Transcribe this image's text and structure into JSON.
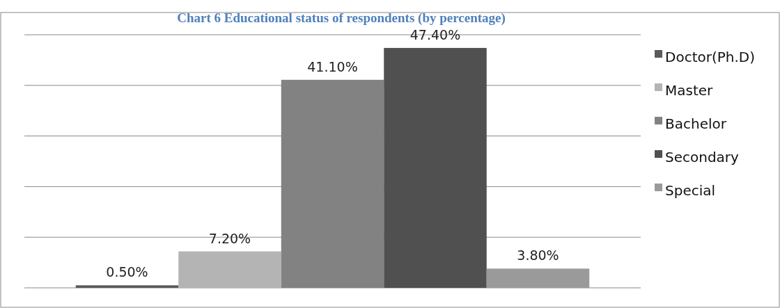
{
  "chart_data": {
    "type": "bar",
    "title": "Chart 6 Educational status of respondents (by percentage)",
    "categories": [
      null
    ],
    "series": [
      {
        "name": "Doctor(Ph.D)",
        "color": "#5a5a5a",
        "values": [
          0.5
        ],
        "value_labels": [
          "0.50%"
        ]
      },
      {
        "name": "Master",
        "color": "#b4b4b4",
        "values": [
          7.2
        ],
        "value_labels": [
          "7.20%"
        ]
      },
      {
        "name": "Bachelor",
        "color": "#828282",
        "values": [
          41.1
        ],
        "value_labels": [
          "41.10%"
        ]
      },
      {
        "name": "Secondary",
        "color": "#505050",
        "values": [
          47.4
        ],
        "value_labels": [
          "47.40%"
        ]
      },
      {
        "name": "Special",
        "color": "#9a9a9a",
        "values": [
          3.8
        ],
        "value_labels": [
          "3.80%"
        ]
      }
    ],
    "ylim": [
      0,
      50
    ],
    "yticks": [
      {
        "value": 0,
        "label": null
      },
      {
        "value": 10,
        "label": null
      },
      {
        "value": 20,
        "label": null
      },
      {
        "value": 30,
        "label": null
      },
      {
        "value": 40,
        "label": null
      },
      {
        "value": 50,
        "label": null
      }
    ],
    "grid": "y",
    "legend": "right"
  }
}
